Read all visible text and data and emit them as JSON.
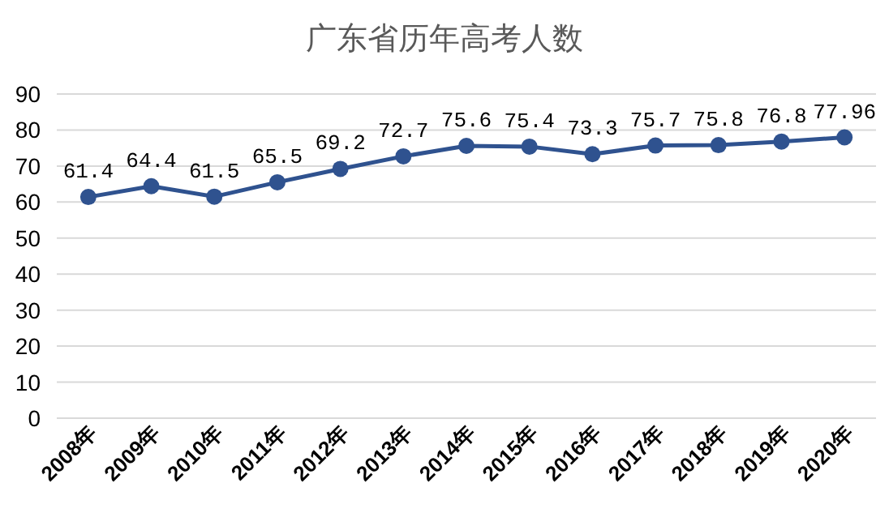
{
  "chart_data": {
    "type": "line",
    "title": "广东省历年高考人数",
    "categories": [
      "2008年",
      "2009年",
      "2010年",
      "2011年",
      "2012年",
      "2013年",
      "2014年",
      "2015年",
      "2016年",
      "2017年",
      "2018年",
      "2019年",
      "2020年"
    ],
    "values": [
      61.4,
      64.4,
      61.5,
      65.5,
      69.2,
      72.7,
      75.6,
      75.4,
      73.3,
      75.7,
      75.8,
      76.8,
      77.96
    ],
    "color": "#2f528f",
    "ylim": [
      0,
      90
    ],
    "yticks": [
      0,
      10,
      20,
      30,
      40,
      50,
      60,
      70,
      80,
      90
    ],
    "grid": "y",
    "marker": "circle",
    "data_labels": true
  }
}
